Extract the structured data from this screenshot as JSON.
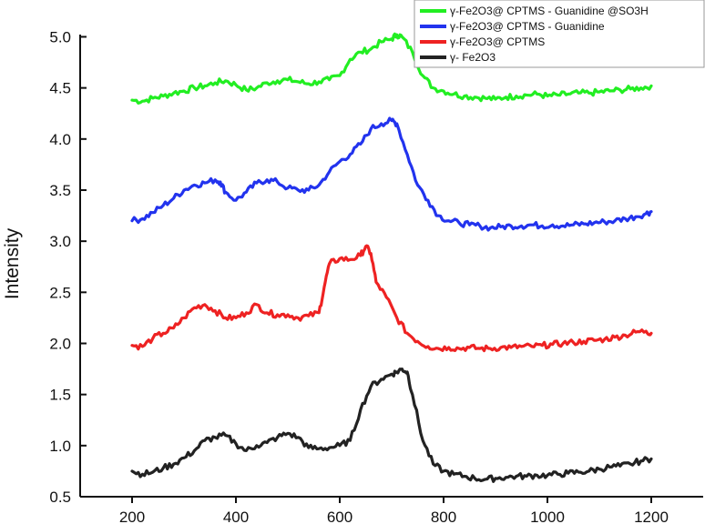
{
  "chart_data": {
    "type": "line",
    "title": "",
    "xlabel": "",
    "ylabel": "Intensity",
    "xlim": [
      200,
      1200
    ],
    "ylim": [
      0.5,
      5.2
    ],
    "x_ticks": [
      200,
      400,
      600,
      800,
      1000,
      1200
    ],
    "y_ticks": [
      0.5,
      1.0,
      1.5,
      2.0,
      2.5,
      3.0,
      3.5,
      4.0,
      4.5,
      5.0
    ],
    "x_tick_labels": [
      "200",
      "400",
      "600",
      "800",
      "1000",
      "1200"
    ],
    "y_tick_labels": [
      "0.5",
      "1.0",
      "1.5",
      "2.0",
      "2.5",
      "3.0",
      "3.5",
      "4.0",
      "4.5",
      "5.0"
    ],
    "grid": false,
    "legend_position": "top-right",
    "series": [
      {
        "name": "γ-Fe2O3@ CPTMS - Guanidine @SO3H",
        "color": "#22ee22",
        "points": [
          [
            200,
            4.38
          ],
          [
            220,
            4.37
          ],
          [
            240,
            4.4
          ],
          [
            260,
            4.42
          ],
          [
            280,
            4.45
          ],
          [
            300,
            4.47
          ],
          [
            320,
            4.5
          ],
          [
            340,
            4.52
          ],
          [
            360,
            4.55
          ],
          [
            380,
            4.57
          ],
          [
            400,
            4.53
          ],
          [
            420,
            4.48
          ],
          [
            440,
            4.5
          ],
          [
            460,
            4.55
          ],
          [
            480,
            4.57
          ],
          [
            500,
            4.58
          ],
          [
            520,
            4.56
          ],
          [
            540,
            4.54
          ],
          [
            560,
            4.56
          ],
          [
            580,
            4.58
          ],
          [
            600,
            4.62
          ],
          [
            620,
            4.78
          ],
          [
            640,
            4.85
          ],
          [
            660,
            4.88
          ],
          [
            680,
            4.95
          ],
          [
            700,
            4.98
          ],
          [
            710,
            5.02
          ],
          [
            720,
            5.0
          ],
          [
            740,
            4.85
          ],
          [
            760,
            4.62
          ],
          [
            780,
            4.5
          ],
          [
            800,
            4.47
          ],
          [
            820,
            4.44
          ],
          [
            840,
            4.42
          ],
          [
            860,
            4.41
          ],
          [
            880,
            4.4
          ],
          [
            900,
            4.39
          ],
          [
            920,
            4.41
          ],
          [
            940,
            4.42
          ],
          [
            960,
            4.43
          ],
          [
            980,
            4.44
          ],
          [
            1000,
            4.42
          ],
          [
            1020,
            4.43
          ],
          [
            1040,
            4.44
          ],
          [
            1060,
            4.45
          ],
          [
            1080,
            4.45
          ],
          [
            1100,
            4.46
          ],
          [
            1120,
            4.47
          ],
          [
            1140,
            4.48
          ],
          [
            1160,
            4.49
          ],
          [
            1180,
            4.5
          ],
          [
            1200,
            4.52
          ]
        ]
      },
      {
        "name": "γ-Fe2O3@ CPTMS - Guanidine",
        "color": "#2233ee",
        "points": [
          [
            200,
            3.2
          ],
          [
            220,
            3.22
          ],
          [
            240,
            3.28
          ],
          [
            260,
            3.35
          ],
          [
            280,
            3.42
          ],
          [
            300,
            3.5
          ],
          [
            320,
            3.55
          ],
          [
            340,
            3.57
          ],
          [
            360,
            3.6
          ],
          [
            370,
            3.58
          ],
          [
            380,
            3.48
          ],
          [
            400,
            3.4
          ],
          [
            420,
            3.48
          ],
          [
            440,
            3.57
          ],
          [
            460,
            3.6
          ],
          [
            480,
            3.58
          ],
          [
            500,
            3.52
          ],
          [
            520,
            3.5
          ],
          [
            540,
            3.5
          ],
          [
            560,
            3.55
          ],
          [
            580,
            3.68
          ],
          [
            600,
            3.78
          ],
          [
            620,
            3.85
          ],
          [
            640,
            3.95
          ],
          [
            660,
            4.1
          ],
          [
            680,
            4.15
          ],
          [
            700,
            4.18
          ],
          [
            710,
            4.15
          ],
          [
            730,
            3.85
          ],
          [
            750,
            3.55
          ],
          [
            770,
            3.4
          ],
          [
            790,
            3.25
          ],
          [
            810,
            3.2
          ],
          [
            830,
            3.18
          ],
          [
            850,
            3.16
          ],
          [
            870,
            3.15
          ],
          [
            890,
            3.13
          ],
          [
            910,
            3.14
          ],
          [
            930,
            3.15
          ],
          [
            950,
            3.15
          ],
          [
            970,
            3.16
          ],
          [
            990,
            3.15
          ],
          [
            1010,
            3.16
          ],
          [
            1030,
            3.15
          ],
          [
            1050,
            3.16
          ],
          [
            1070,
            3.17
          ],
          [
            1090,
            3.18
          ],
          [
            1110,
            3.19
          ],
          [
            1130,
            3.2
          ],
          [
            1150,
            3.22
          ],
          [
            1170,
            3.24
          ],
          [
            1190,
            3.27
          ],
          [
            1200,
            3.29
          ]
        ]
      },
      {
        "name": "γ-Fe2O3@ CPTMS",
        "color": "#ee2222",
        "points": [
          [
            200,
            1.98
          ],
          [
            220,
            1.97
          ],
          [
            240,
            2.05
          ],
          [
            260,
            2.1
          ],
          [
            280,
            2.15
          ],
          [
            300,
            2.25
          ],
          [
            320,
            2.35
          ],
          [
            340,
            2.38
          ],
          [
            360,
            2.32
          ],
          [
            380,
            2.25
          ],
          [
            400,
            2.25
          ],
          [
            420,
            2.3
          ],
          [
            440,
            2.38
          ],
          [
            460,
            2.3
          ],
          [
            480,
            2.28
          ],
          [
            500,
            2.28
          ],
          [
            520,
            2.25
          ],
          [
            540,
            2.27
          ],
          [
            560,
            2.3
          ],
          [
            570,
            2.55
          ],
          [
            580,
            2.78
          ],
          [
            600,
            2.83
          ],
          [
            620,
            2.82
          ],
          [
            640,
            2.86
          ],
          [
            650,
            2.95
          ],
          [
            660,
            2.88
          ],
          [
            670,
            2.6
          ],
          [
            690,
            2.45
          ],
          [
            710,
            2.25
          ],
          [
            730,
            2.1
          ],
          [
            750,
            2.02
          ],
          [
            770,
            1.97
          ],
          [
            790,
            1.95
          ],
          [
            810,
            1.96
          ],
          [
            830,
            1.95
          ],
          [
            850,
            1.96
          ],
          [
            870,
            1.95
          ],
          [
            890,
            1.95
          ],
          [
            910,
            1.96
          ],
          [
            930,
            1.96
          ],
          [
            950,
            1.97
          ],
          [
            970,
            1.97
          ],
          [
            990,
            1.98
          ],
          [
            1010,
            1.99
          ],
          [
            1030,
            2.0
          ],
          [
            1050,
            2.01
          ],
          [
            1070,
            2.02
          ],
          [
            1090,
            2.03
          ],
          [
            1110,
            2.04
          ],
          [
            1130,
            2.06
          ],
          [
            1150,
            2.08
          ],
          [
            1170,
            2.11
          ],
          [
            1190,
            2.12
          ],
          [
            1200,
            2.1
          ]
        ]
      },
      {
        "name": "γ- Fe2O3",
        "color": "#222222",
        "points": [
          [
            200,
            0.75
          ],
          [
            220,
            0.72
          ],
          [
            240,
            0.74
          ],
          [
            260,
            0.78
          ],
          [
            280,
            0.82
          ],
          [
            300,
            0.88
          ],
          [
            320,
            0.95
          ],
          [
            340,
            1.05
          ],
          [
            360,
            1.08
          ],
          [
            380,
            1.1
          ],
          [
            400,
            1.02
          ],
          [
            420,
            0.95
          ],
          [
            440,
            1.0
          ],
          [
            460,
            1.03
          ],
          [
            480,
            1.08
          ],
          [
            500,
            1.12
          ],
          [
            520,
            1.08
          ],
          [
            540,
            0.98
          ],
          [
            560,
            0.97
          ],
          [
            580,
            0.98
          ],
          [
            600,
            1.0
          ],
          [
            620,
            1.05
          ],
          [
            640,
            1.35
          ],
          [
            660,
            1.58
          ],
          [
            680,
            1.65
          ],
          [
            700,
            1.7
          ],
          [
            710,
            1.72
          ],
          [
            720,
            1.75
          ],
          [
            730,
            1.72
          ],
          [
            740,
            1.5
          ],
          [
            760,
            1.05
          ],
          [
            780,
            0.82
          ],
          [
            800,
            0.75
          ],
          [
            820,
            0.72
          ],
          [
            840,
            0.7
          ],
          [
            860,
            0.68
          ],
          [
            880,
            0.67
          ],
          [
            900,
            0.68
          ],
          [
            920,
            0.69
          ],
          [
            940,
            0.7
          ],
          [
            960,
            0.7
          ],
          [
            980,
            0.71
          ],
          [
            1000,
            0.71
          ],
          [
            1020,
            0.72
          ],
          [
            1040,
            0.73
          ],
          [
            1060,
            0.74
          ],
          [
            1080,
            0.75
          ],
          [
            1100,
            0.77
          ],
          [
            1120,
            0.79
          ],
          [
            1140,
            0.8
          ],
          [
            1160,
            0.82
          ],
          [
            1180,
            0.85
          ],
          [
            1200,
            0.87
          ]
        ]
      }
    ]
  }
}
